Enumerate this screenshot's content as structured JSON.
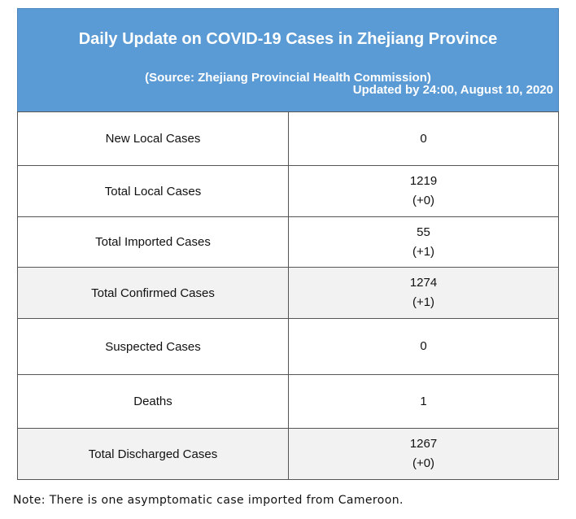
{
  "header": {
    "title": "Daily Update on COVID-19 Cases in Zhejiang Province",
    "source": "(Source: Zhejiang Provincial Health Commission)",
    "updated": "Updated by 24:00, August 10, 2020"
  },
  "table": {
    "rows": [
      [
        "New Local Cases",
        "0"
      ],
      [
        "Total Local Cases",
        "1219",
        "(+0)"
      ],
      [
        "Total Imported Cases",
        "55",
        "(+1)"
      ],
      [
        "Total Confirmed Cases",
        "1274",
        "(+1)"
      ],
      [
        "Suspected Cases",
        "0"
      ],
      [
        "Deaths",
        "1"
      ],
      [
        "Total Discharged Cases",
        "1267",
        "(+0)"
      ]
    ]
  },
  "note": "Note: There is one asymptomatic case imported from Cameroon."
}
